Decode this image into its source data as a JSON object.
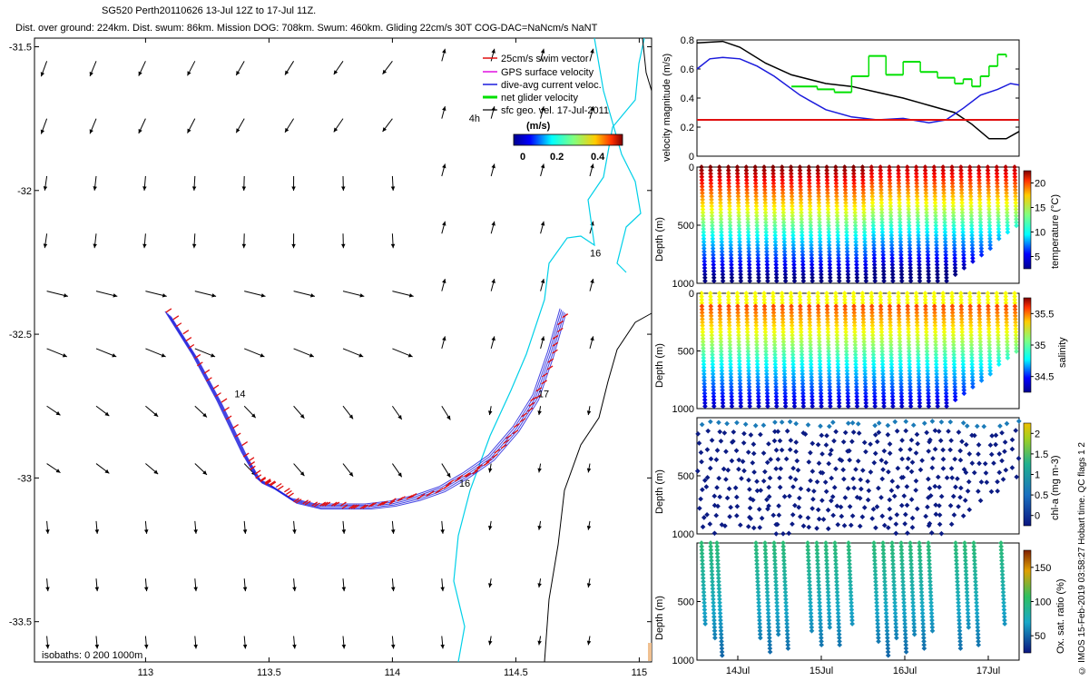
{
  "header": {
    "line1": "SG520 Perth20110626  13-Jul 12Z to 17-Jul 11Z.",
    "line2": "Dist. over ground: 224km. Dist. swum: 86km. Mission DOG: 708km. Swum: 460km. Gliding 22cm/s 30T COG-DAC=NaNcm/s NaNT"
  },
  "footer": "© IMOS 15-Feb-2019 03:58:27 Hobart time. QC flags 1  2",
  "colors": {
    "track": "#1a1adc",
    "swim": "#e01010",
    "coast": "#00d0e8",
    "isobath": "#000000",
    "net_velocity": "#00e000",
    "dac_line": "#1a1adc",
    "sfc_line": "#000000",
    "threshold_line": "#e01010"
  },
  "chart_data": [
    {
      "type": "scatter",
      "title": "Glider track map",
      "xlabel": "",
      "ylabel": "",
      "xlim": [
        112.55,
        115.05
      ],
      "ylim": [
        -33.64,
        -31.47
      ],
      "xticks": [
        113,
        113.5,
        114,
        114.5,
        115
      ],
      "xtick_labels": [
        "113",
        "113.5",
        "114",
        "114.5",
        "115"
      ],
      "yticks": [
        -31.5,
        -32,
        -32.5,
        -33,
        -33.5
      ],
      "ytick_labels": [
        "-31.5",
        "-32",
        "-32.5",
        "-33",
        "-33.5"
      ],
      "legend": {
        "placement": "top-right",
        "entries": [
          {
            "label": "25cm/s swim vector",
            "color": "#e01010"
          },
          {
            "label": "GPS surface velocity",
            "color": "#e010e0"
          },
          {
            "label": "dive-avg current veloc.",
            "color": "#1a1adc"
          },
          {
            "label": "net glider velocity",
            "color": "#00e000"
          },
          {
            "label": "sfc geo. vel. 17-Jul-2011",
            "color": "#000000"
          }
        ]
      },
      "colorbar": {
        "label": "(m/s)",
        "ticks": [
          "0",
          "0.2",
          "0.4"
        ]
      },
      "track": {
        "lon": [
          113.09,
          113.2,
          113.3,
          113.4,
          113.46,
          113.51,
          113.6,
          113.7,
          113.8,
          113.9,
          114.0,
          114.1,
          114.2,
          114.3,
          114.4,
          114.5,
          114.58,
          114.64,
          114.69
        ],
        "lat": [
          -32.43,
          -32.58,
          -32.74,
          -32.92,
          -33.01,
          -33.03,
          -33.08,
          -33.1,
          -33.1,
          -33.1,
          -33.09,
          -33.07,
          -33.04,
          -32.99,
          -32.93,
          -32.83,
          -32.72,
          -32.57,
          -32.42
        ]
      },
      "day_labels": [
        {
          "text": "14",
          "lon": 113.36,
          "lat": -32.72
        },
        {
          "text": "16",
          "lon": 114.27,
          "lat": -33.03
        },
        {
          "text": "17",
          "lon": 114.59,
          "lat": -32.72
        },
        {
          "text": "16",
          "lon": 114.8,
          "lat": -32.23
        },
        {
          "text": "4h",
          "lon": 114.31,
          "lat": -31.76
        }
      ],
      "isobath_note": "isobaths: 0   200  1000m"
    },
    {
      "type": "line",
      "ylabel": "velocity magnitude (m/s)",
      "ylim": [
        0,
        0.8
      ],
      "yticks": [
        0,
        0.2,
        0.4,
        0.6,
        0.8
      ],
      "ytick_labels": [
        "0",
        "0.2",
        "0.4",
        "0.6",
        "0.8"
      ],
      "xlim": [
        13.5,
        17.25
      ],
      "series": [
        {
          "name": "sfc geo. vel.",
          "color": "#000000",
          "x": [
            13.5,
            13.8,
            14.0,
            14.3,
            14.6,
            15.0,
            15.3,
            15.6,
            15.9,
            16.2,
            16.5,
            16.7,
            16.9,
            17.1,
            17.25
          ],
          "y": [
            0.78,
            0.79,
            0.75,
            0.64,
            0.56,
            0.5,
            0.48,
            0.44,
            0.4,
            0.35,
            0.3,
            0.22,
            0.12,
            0.12,
            0.17
          ]
        },
        {
          "name": "dive-avg current veloc.",
          "color": "#1a1adc",
          "x": [
            13.5,
            13.65,
            13.8,
            14.0,
            14.2,
            14.4,
            14.7,
            15.0,
            15.3,
            15.6,
            15.9,
            16.2,
            16.4,
            16.6,
            16.8,
            17.0,
            17.15,
            17.25
          ],
          "y": [
            0.6,
            0.67,
            0.68,
            0.67,
            0.62,
            0.55,
            0.42,
            0.32,
            0.27,
            0.25,
            0.26,
            0.23,
            0.25,
            0.33,
            0.42,
            0.46,
            0.5,
            0.49
          ]
        },
        {
          "name": "net glider velocity",
          "color": "#00e000",
          "x": [
            14.6,
            14.9,
            15.1,
            15.3,
            15.5,
            15.7,
            15.9,
            16.1,
            16.3,
            16.5,
            16.6,
            16.7,
            16.8,
            16.9,
            17.0,
            17.1
          ],
          "y": [
            0.48,
            0.46,
            0.44,
            0.55,
            0.69,
            0.56,
            0.65,
            0.58,
            0.54,
            0.5,
            0.53,
            0.48,
            0.55,
            0.62,
            0.7,
            0.68
          ]
        },
        {
          "name": "25 cm/s",
          "color": "#e01010",
          "x": [
            13.5,
            17.25
          ],
          "y": [
            0.25,
            0.25
          ]
        }
      ]
    },
    {
      "type": "scatter",
      "ylabel": "Depth (m)",
      "yticks": [
        0,
        500,
        1000
      ],
      "ytick_labels": [
        "0",
        "500",
        "1000"
      ],
      "colorbar": {
        "label": "temperature (°C)",
        "ticks": [
          "5",
          "10",
          "15",
          "20"
        ]
      }
    },
    {
      "type": "scatter",
      "ylabel": "Depth (m)",
      "yticks": [
        0,
        500,
        1000
      ],
      "ytick_labels": [
        "0",
        "500",
        "1000"
      ],
      "colorbar": {
        "label": "salinity",
        "ticks": [
          "34.5",
          "35",
          "35.5"
        ]
      }
    },
    {
      "type": "scatter",
      "ylabel": "Depth (m)",
      "yticks": [
        500,
        1000
      ],
      "ytick_labels": [
        "500",
        "1000"
      ],
      "colorbar": {
        "label": "chl-a (mg m-3)",
        "ticks": [
          "0",
          "0.5",
          "1",
          "1.5",
          "2"
        ]
      }
    },
    {
      "type": "scatter",
      "ylabel": "Depth (m)",
      "yticks": [
        500,
        1000
      ],
      "ytick_labels": [
        "500",
        "1000"
      ],
      "xticks": [
        "14Jul",
        "15Jul",
        "16Jul",
        "17Jul"
      ],
      "colorbar": {
        "label": "Ox. sat. ratio (%)",
        "ticks": [
          "50",
          "100",
          "150"
        ]
      }
    }
  ]
}
